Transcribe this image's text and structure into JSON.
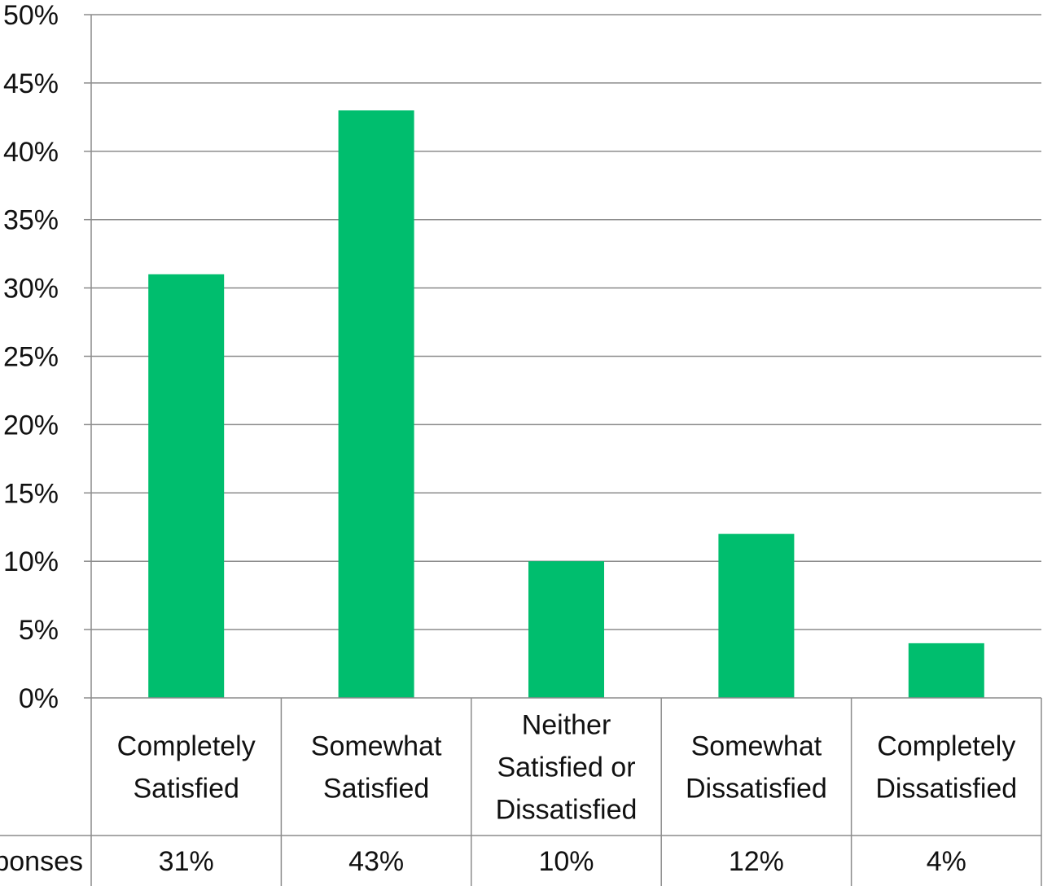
{
  "chart_data": {
    "type": "bar",
    "categories": [
      [
        "Completely",
        "Satisfied"
      ],
      [
        "Somewhat",
        "Satisfied"
      ],
      [
        "Neither",
        "Satisfied or",
        "Dissatisfied"
      ],
      [
        "Somewhat",
        "Dissatisfied"
      ],
      [
        "Completely",
        "Dissatisfied"
      ]
    ],
    "series": [
      {
        "name": "Responses",
        "values": [
          31,
          43,
          10,
          12,
          4
        ]
      }
    ],
    "table_values": [
      "31%",
      "43%",
      "10%",
      "12%",
      "4%"
    ],
    "y_ticks": [
      "0%",
      "5%",
      "10%",
      "15%",
      "20%",
      "25%",
      "30%",
      "35%",
      "40%",
      "45%",
      "50%"
    ],
    "ylim": [
      0,
      50
    ],
    "grid": true,
    "legend": "data-table-row",
    "colors": {
      "bar": "#00BE6E",
      "grid": "#8C8C8C",
      "text": "#111111"
    },
    "title": "",
    "xlabel": "",
    "ylabel": ""
  }
}
